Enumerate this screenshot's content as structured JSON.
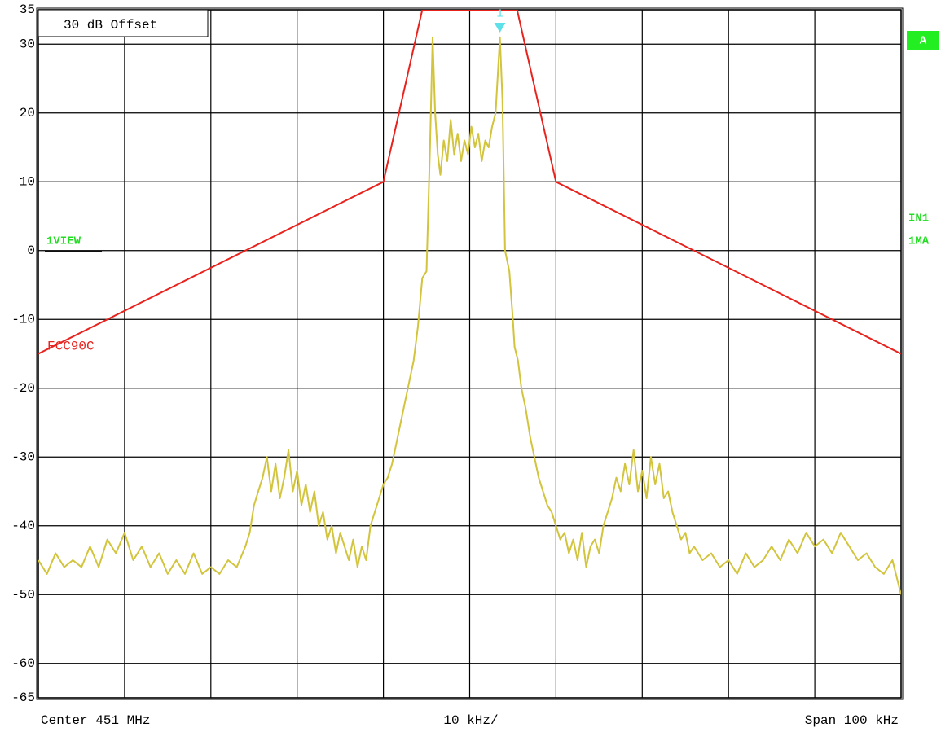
{
  "chart_data": {
    "type": "line",
    "xlim": [
      -50,
      50
    ],
    "xticks": [
      -50,
      -40,
      -30,
      -20,
      -10,
      0,
      10,
      20,
      30,
      40,
      50
    ],
    "ylim": [
      -65,
      35
    ],
    "yticks": [
      35,
      30,
      20,
      10,
      0,
      -10,
      -20,
      -30,
      -40,
      -50,
      -60,
      -65
    ],
    "grid": true,
    "series": [
      {
        "color": "#d2c43c",
        "x": [
          -50,
          -49,
          -48,
          -47,
          -46,
          -45,
          -44,
          -43,
          -42,
          -41,
          -40,
          -39,
          -38,
          -37,
          -36,
          -35,
          -34,
          -33,
          -32,
          -31,
          -30,
          -29,
          -28,
          -27,
          -26,
          -25.5,
          -25,
          -24.5,
          -24,
          -23.5,
          -23,
          -22.5,
          -22,
          -21.5,
          -21,
          -20.5,
          -20,
          -19.5,
          -19,
          -18.5,
          -18,
          -17.5,
          -17,
          -16.5,
          -16,
          -15.5,
          -15,
          -14,
          -13.5,
          -13,
          -12.5,
          -12,
          -11.5,
          -11,
          -10.5,
          -10,
          -9.5,
          -9,
          -8.5,
          -8,
          -7.5,
          -7,
          -6.5,
          -6,
          -5.5,
          -5,
          -4.6,
          -4.3,
          -4,
          -3.7,
          -3.4,
          -3,
          -2.6,
          -2.2,
          -1.8,
          -1.4,
          -1,
          -0.6,
          -0.2,
          0.2,
          0.6,
          1,
          1.4,
          1.8,
          2.2,
          2.6,
          3,
          3.5,
          3.8,
          4.1,
          4.6,
          5,
          5.2,
          5.6,
          6,
          6.5,
          7,
          7.5,
          8,
          8.5,
          9,
          9.5,
          10,
          10.5,
          11,
          11.5,
          12,
          12.5,
          13,
          13.5,
          14,
          14.5,
          15,
          15.5,
          16,
          16.5,
          17,
          17.5,
          18,
          18.5,
          19,
          19.5,
          20,
          20.5,
          21,
          21.5,
          22,
          22.5,
          23,
          23.5,
          24,
          24.5,
          25,
          25.5,
          26,
          27,
          28,
          29,
          30,
          31,
          32,
          33,
          34,
          35,
          36,
          37,
          38,
          39,
          40,
          41,
          42,
          43,
          44,
          45,
          46,
          47,
          48,
          49,
          50
        ],
        "values": [
          -45,
          -47,
          -44,
          -46,
          -45,
          -46,
          -43,
          -46,
          -42,
          -44,
          -41,
          -45,
          -43,
          -46,
          -44,
          -47,
          -45,
          -47,
          -44,
          -47,
          -46,
          -47,
          -45,
          -46,
          -43,
          -41,
          -37,
          -35,
          -33,
          -30,
          -35,
          -31,
          -36,
          -33,
          -29,
          -35,
          -32,
          -37,
          -34,
          -38,
          -35,
          -40,
          -38,
          -42,
          -40,
          -44,
          -41,
          -45,
          -42,
          -46,
          -43,
          -45,
          -40,
          -38,
          -36,
          -34,
          -33,
          -31,
          -28,
          -25,
          -22,
          -19,
          -16,
          -11,
          -4,
          -3,
          15,
          31,
          20,
          14,
          11,
          16,
          13,
          19,
          14,
          17,
          13,
          16,
          14,
          18,
          15,
          17,
          13,
          16,
          15,
          18,
          20,
          31,
          22,
          0,
          -3,
          -10,
          -14,
          -16,
          -20,
          -23,
          -27,
          -30,
          -33,
          -35,
          -37,
          -38,
          -40,
          -42,
          -41,
          -44,
          -42,
          -45,
          -41,
          -46,
          -43,
          -42,
          -44,
          -40,
          -38,
          -36,
          -33,
          -35,
          -31,
          -34,
          -29,
          -35,
          -32,
          -36,
          -30,
          -34,
          -31,
          -36,
          -35,
          -38,
          -40,
          -42,
          -41,
          -44,
          -43,
          -45,
          -44,
          -46,
          -45,
          -47,
          -44,
          -46,
          -45,
          -43,
          -45,
          -42,
          -44,
          -41,
          -43,
          -42,
          -44,
          -41,
          -43,
          -45,
          -44,
          -46,
          -47,
          -45,
          -50
        ]
      },
      {
        "name": "FCC90C",
        "color": "#e8231e",
        "x": [
          -50,
          -10,
          -5.5,
          5.5,
          10,
          50
        ],
        "values": [
          -15,
          10,
          35,
          35,
          10,
          -15
        ]
      }
    ],
    "marker": {
      "label": "1",
      "x": 3.5,
      "color": "#5ee0e8"
    },
    "annotations": {
      "offset": "30 dB Offset",
      "view": "1VIEW",
      "status": "A",
      "input": "IN1",
      "mode": "1MA",
      "center": "Center 451 MHz",
      "division": "10 kHz/",
      "span": "Span 100 kHz"
    }
  }
}
